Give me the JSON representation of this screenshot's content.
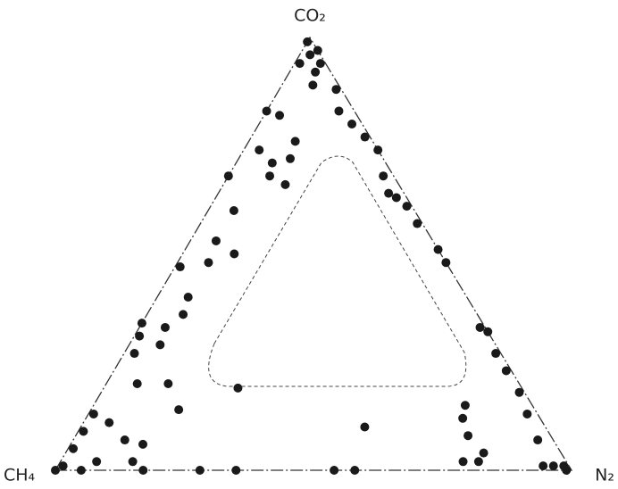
{
  "chart_data": {
    "type": "ternary",
    "labels": {
      "top": "CO₂",
      "left": "CH₄",
      "right": "N₂"
    },
    "color": "#1a1a1a",
    "co2": [
      99,
      96,
      94,
      92,
      94,
      89,
      83,
      82,
      76,
      74,
      68,
      71,
      66,
      68,
      60,
      53,
      48,
      50,
      47,
      40,
      36,
      34,
      33,
      31,
      29,
      27,
      20,
      20,
      14,
      11,
      13,
      9,
      7,
      5,
      1,
      0,
      0,
      2,
      2,
      0,
      0,
      0,
      0,
      0,
      19,
      6,
      10,
      88,
      83,
      80,
      77,
      74,
      68,
      64,
      61,
      57,
      51,
      48,
      33,
      32,
      27,
      23,
      18,
      13,
      7,
      1,
      1,
      0,
      1,
      2,
      2,
      4,
      12,
      8,
      15,
      63,
      72,
      97
    ],
    "n2": [
      0,
      2,
      1,
      5,
      5,
      6,
      0,
      3,
      9,
      3,
      0,
      7,
      12,
      8,
      5,
      5,
      6,
      10,
      1,
      6,
      7,
      0,
      5,
      1,
      6,
      2,
      6,
      12,
      17,
      5,
      1,
      1,
      10,
      1,
      1,
      0,
      5,
      7,
      14,
      17,
      28,
      35,
      54,
      58,
      26,
      14,
      55,
      11,
      14,
      18,
      22,
      26,
      30,
      33,
      38,
      42,
      49,
      52,
      66,
      68,
      72,
      76,
      81,
      85,
      90,
      96,
      98,
      99,
      94,
      78,
      81,
      81,
      73,
      76,
      72,
      35,
      10,
      3
    ],
    "ch4": [
      1,
      2,
      5,
      3,
      1,
      5,
      17,
      15,
      15,
      23,
      32,
      22,
      22,
      24,
      35,
      42,
      46,
      40,
      52,
      54,
      57,
      66,
      62,
      68,
      65,
      71,
      74,
      68,
      69,
      84,
      86,
      90,
      83,
      94,
      98,
      100,
      95,
      91,
      84,
      83,
      72,
      65,
      46,
      42,
      55,
      80,
      35,
      1,
      3,
      2,
      1,
      0,
      2,
      3,
      1,
      1,
      0,
      0,
      1,
      0,
      1,
      1,
      1,
      2,
      3,
      3,
      1,
      1,
      5,
      20,
      17,
      15,
      15,
      16,
      13,
      2,
      18,
      0
    ]
  }
}
